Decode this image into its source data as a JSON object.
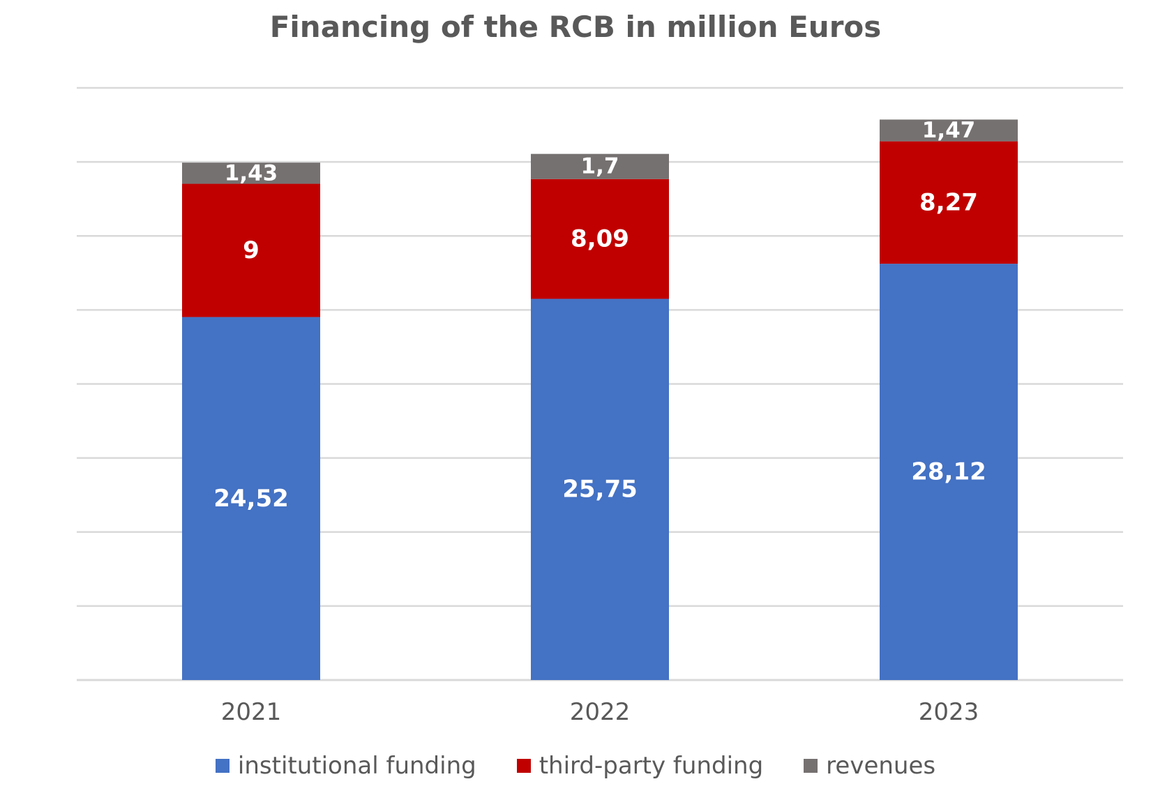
{
  "chart_data": {
    "type": "bar",
    "stacked": true,
    "title": "Financing of the RCB in million Euros",
    "categories": [
      "2021",
      "2022",
      "2023"
    ],
    "series": [
      {
        "name": "institutional funding",
        "values": [
          24.52,
          25.75,
          28.12
        ],
        "labels": [
          "24,52",
          "25,75",
          "28,12"
        ],
        "color": "#4472C4"
      },
      {
        "name": "third-party funding",
        "values": [
          9,
          8.09,
          8.27
        ],
        "labels": [
          "9",
          "8,09",
          "8,27"
        ],
        "color": "#C00000"
      },
      {
        "name": "revenues",
        "values": [
          1.43,
          1.7,
          1.47
        ],
        "labels": [
          "1,43",
          "1,7",
          "1,47"
        ],
        "color": "#767171"
      }
    ],
    "ylim": [
      0,
      40
    ],
    "ytick_step": 5,
    "y_axis_labels_shown": false,
    "grid": true,
    "gridline_color": "#D9D9D9",
    "data_label_color": "#FFFFFF",
    "text_color": "#595959",
    "legend_position": "bottom"
  }
}
